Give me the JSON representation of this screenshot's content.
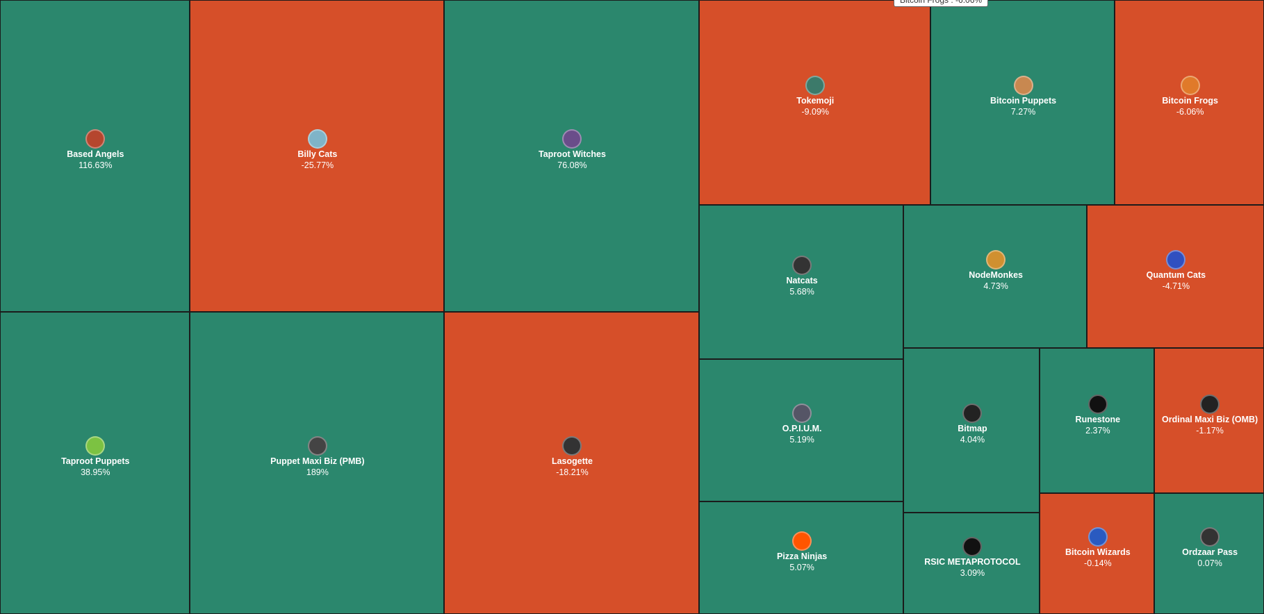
{
  "tooltip": "Bitcoin Frogs : -6.06%",
  "tiles": [
    {
      "name": "Based Angels",
      "change": "116.63%",
      "color": "#2b876d"
    },
    {
      "name": "Billy Cats",
      "change": "-25.77%",
      "color": "#d64f29"
    },
    {
      "name": "Taproot Witches",
      "change": "76.08%",
      "color": "#2b876d"
    },
    {
      "name": "Taproot Puppets",
      "change": "38.95%",
      "color": "#2b876d"
    },
    {
      "name": "Puppet Maxi Biz (PMB)",
      "change": "189%",
      "color": "#2b876d"
    },
    {
      "name": "Lasogette",
      "change": "-18.21%",
      "color": "#d64f29"
    },
    {
      "name": "Tokemoji",
      "change": "-9.09%",
      "color": "#d64f29"
    },
    {
      "name": "Bitcoin Puppets",
      "change": "7.27%",
      "color": "#2b876d"
    },
    {
      "name": "Bitcoin Frogs",
      "change": "-6.06%",
      "color": "#d64f29"
    },
    {
      "name": "Natcats",
      "change": "5.68%",
      "color": "#2b876d"
    },
    {
      "name": "NodeMonkes",
      "change": "4.73%",
      "color": "#2b876d"
    },
    {
      "name": "Quantum Cats",
      "change": "-4.71%",
      "color": "#d64f29"
    },
    {
      "name": "O.P.I.U.M.",
      "change": "5.19%",
      "color": "#2b876d"
    },
    {
      "name": "Pizza Ninjas",
      "change": "5.07%",
      "color": "#2b876d"
    },
    {
      "name": "Bitmap",
      "change": "4.04%",
      "color": "#2b876d"
    },
    {
      "name": "RSIC METAPROTOCOL",
      "change": "3.09%",
      "color": "#2b876d"
    },
    {
      "name": "Runestone",
      "change": "2.37%",
      "color": "#2b876d"
    },
    {
      "name": "Ordinal Maxi Biz (OMB)",
      "change": "-1.17%",
      "color": "#d64f29"
    },
    {
      "name": "Bitcoin Wizards",
      "change": "-0.14%",
      "color": "#d64f29"
    },
    {
      "name": "Ordzaar Pass",
      "change": "0.07%",
      "color": "#2b876d"
    }
  ]
}
